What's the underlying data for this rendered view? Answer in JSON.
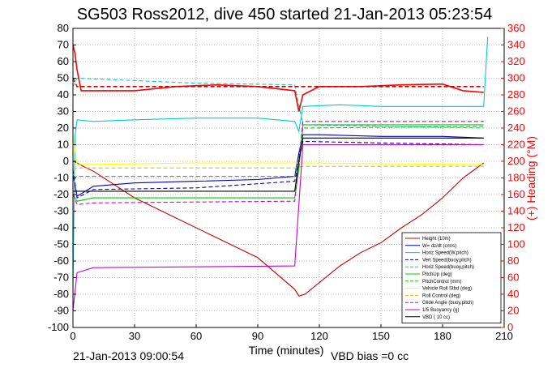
{
  "chart_data": {
    "type": "line",
    "title": "SG503 Ross2012, dive 450 started 21-Jan-2013 05:23:54",
    "xlabel": "Time (minutes)",
    "ylabel_right": "(+) Heading (°M)",
    "footer_left": "21-Jan-2013 09:00:54",
    "footer_right": "VBD bias =0 cc",
    "xlim": [
      0,
      210
    ],
    "ylim": [
      -100,
      80
    ],
    "ylim_right": [
      0,
      360
    ],
    "x_ticks": [
      0,
      30,
      60,
      90,
      120,
      150,
      180,
      210
    ],
    "y_ticks": [
      -100,
      -90,
      -80,
      -70,
      -60,
      -50,
      -40,
      -30,
      -20,
      -10,
      0,
      10,
      20,
      30,
      40,
      50,
      60,
      70,
      80
    ],
    "y_ticks_right": [
      0,
      20,
      40,
      60,
      80,
      100,
      120,
      140,
      160,
      180,
      200,
      220,
      240,
      260,
      280,
      300,
      320,
      340,
      360
    ],
    "grid": true,
    "legend_position": "bottom-right",
    "colors": {
      "axis_right": "#ff0000"
    },
    "series": [
      {
        "name": "Height (10m)",
        "color": "#cc0000",
        "style": "solid",
        "x": [
          0,
          2,
          5,
          10,
          20,
          30,
          50,
          70,
          90,
          108,
          110,
          113,
          120,
          130,
          140,
          150,
          160,
          170,
          180,
          190,
          200
        ],
        "values": [
          0,
          -1,
          -3,
          -6,
          -14,
          -22,
          -34,
          -46,
          -58,
          -77,
          -81,
          -80,
          -73,
          -63,
          -55,
          -49,
          -40,
          -32,
          -22,
          -10,
          -1
        ]
      },
      {
        "name": "W= dz/dt (cm/s)",
        "color": "#0000cc",
        "style": "solid",
        "x": [
          0,
          2,
          10,
          30,
          60,
          90,
          108,
          110,
          112,
          120,
          150,
          180,
          200
        ],
        "values": [
          -8,
          -21,
          -15,
          -13,
          -12,
          -11,
          -9,
          5,
          16,
          16,
          15,
          15,
          14
        ]
      },
      {
        "name": "Horiz Speed(W,pitch)",
        "color": "#00cccc",
        "style": "solid",
        "x": [
          0,
          1,
          2,
          10,
          30,
          60,
          90,
          108,
          110,
          112,
          130,
          150,
          180,
          200,
          202
        ],
        "values": [
          -76,
          15,
          25,
          24,
          25,
          26,
          26,
          24,
          18,
          33,
          34,
          33,
          33,
          33,
          75
        ]
      },
      {
        "name": "Vert Speed(buoy,pitch)",
        "color": "#0000cc",
        "style": "dashed",
        "x": [
          0,
          2,
          10,
          60,
          108,
          112,
          150,
          200
        ],
        "values": [
          -5,
          -22,
          -17,
          -16,
          -12,
          12,
          11,
          10
        ]
      },
      {
        "name": "Horiz Speed(buoy,pitch)",
        "color": "#00cccc",
        "style": "dashed",
        "x": [
          0,
          2,
          60,
          108,
          112,
          200
        ],
        "values": [
          45,
          50,
          47,
          46,
          22,
          20
        ]
      },
      {
        "name": "PitchUp (deg)",
        "color": "#00cc00",
        "style": "solid",
        "x": [
          0,
          2,
          10,
          108,
          110,
          112,
          200
        ],
        "values": [
          -20,
          -24,
          -22,
          -22,
          -5,
          22,
          22
        ]
      },
      {
        "name": "PitchControl (mm)",
        "color": "#00cc00",
        "style": "dashed",
        "x": [
          0,
          2,
          108,
          110,
          112,
          200
        ],
        "values": [
          -10,
          -9,
          -9,
          0,
          20,
          21
        ]
      },
      {
        "name": "Vehicle Roll Stbd (deg)",
        "color": "#ffff00",
        "style": "solid",
        "x": [
          0,
          2,
          60,
          108,
          112,
          200
        ],
        "values": [
          15,
          -2,
          -1,
          -1,
          -1,
          -2
        ]
      },
      {
        "name": "Roll Control (deg)",
        "color": "#cccc00",
        "style": "dashed",
        "x": [
          0,
          2,
          108,
          112,
          200
        ],
        "values": [
          -5,
          -4,
          -4,
          -3,
          -3
        ]
      },
      {
        "name": "Glide Angle (buoy,pitch)",
        "color": "#cc00cc",
        "style": "dashed",
        "x": [
          0,
          2,
          10,
          108,
          112,
          200
        ],
        "values": [
          -20,
          -26,
          -25,
          -24,
          24,
          24
        ]
      },
      {
        "name": "1/5 Buoyancy (g)",
        "color": "#cc00cc",
        "style": "solid",
        "x": [
          0,
          2,
          10,
          108,
          112,
          200
        ],
        "values": [
          -90,
          -67,
          -64,
          -63,
          10,
          10
        ]
      },
      {
        "name": "VBD ( 10 cc)",
        "color": "#000000",
        "style": "solid",
        "x": [
          0,
          2,
          108,
          110,
          112,
          200
        ],
        "values": [
          -18,
          -18,
          -18,
          0,
          14,
          14
        ]
      },
      {
        "name": "Heading",
        "axis": "right",
        "color": "#ff0000",
        "style": "solid",
        "x": [
          0,
          1,
          2,
          4,
          10,
          30,
          50,
          70,
          90,
          108,
          110,
          112,
          120,
          140,
          160,
          180,
          190,
          200
        ],
        "values": [
          340,
          330,
          310,
          285,
          285,
          285,
          290,
          292,
          290,
          285,
          260,
          280,
          290,
          290,
          292,
          293,
          285,
          283
        ]
      },
      {
        "name": "Heading (desired)",
        "axis": "right",
        "color": "#cc0000",
        "style": "dashed",
        "x": [
          0,
          2,
          108,
          112,
          200
        ],
        "values": [
          300,
          290,
          290,
          290,
          290
        ]
      }
    ],
    "legend": [
      "Height (10m)",
      "W= dz/dt (cm/s)",
      "Horiz Speed(W,pitch)",
      "Vert Speed(buoy,pitch)",
      "Horiz Speed(buoy,pitch)",
      "PitchUp (deg)",
      "PitchControl (mm)",
      "Vehicle Roll Stbd (deg)",
      "Roll Control (deg)",
      "Glide Angle (buoy,pitch)",
      "1/5 Buoyancy (g)",
      "VBD ( 10 cc)"
    ]
  }
}
